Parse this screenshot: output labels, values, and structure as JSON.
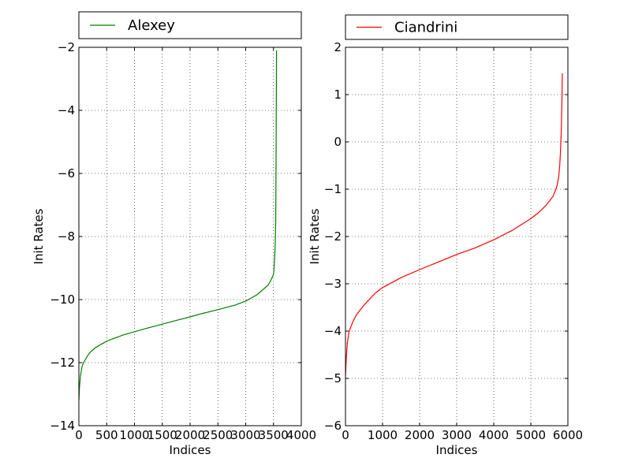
{
  "chart_data": [
    {
      "type": "line",
      "xlabel": "Indices",
      "ylabel": "Init Rates",
      "xlim": [
        0,
        4000
      ],
      "ylim": [
        -14,
        -2
      ],
      "xticks": [
        0,
        500,
        1000,
        1500,
        2000,
        2500,
        3000,
        3500,
        4000
      ],
      "xtick_labels": [
        "0",
        "500",
        "1000",
        "1500",
        "2000",
        "2500",
        "3000",
        "3500",
        "4000"
      ],
      "yticks": [
        -14,
        -12,
        -10,
        -8,
        -6,
        -4,
        -2
      ],
      "ytick_labels": [
        "−14",
        "−12",
        "−10",
        "−8",
        "−6",
        "−4",
        "−2"
      ],
      "grid": true,
      "legend_placement": "top, above plot",
      "series": [
        {
          "name": "Alexey",
          "color": "#008000",
          "x": [
            0,
            10,
            30,
            60,
            100,
            150,
            200,
            300,
            400,
            500,
            600,
            800,
            1000,
            1200,
            1500,
            1800,
            2000,
            2200,
            2500,
            2800,
            3000,
            3200,
            3300,
            3400,
            3450,
            3500,
            3510,
            3520,
            3530,
            3540,
            3545,
            3550,
            3555
          ],
          "y": [
            -13.2,
            -12.8,
            -12.4,
            -12.1,
            -11.95,
            -11.8,
            -11.68,
            -11.52,
            -11.42,
            -11.32,
            -11.25,
            -11.12,
            -11.02,
            -10.92,
            -10.78,
            -10.64,
            -10.55,
            -10.45,
            -10.32,
            -10.18,
            -10.05,
            -9.85,
            -9.7,
            -9.55,
            -9.4,
            -9.2,
            -9.0,
            -8.7,
            -8.3,
            -7.5,
            -6.0,
            -4.0,
            -2.1
          ]
        }
      ]
    },
    {
      "type": "line",
      "xlabel": "Indices",
      "ylabel": "Init Rates",
      "xlim": [
        0,
        6000
      ],
      "ylim": [
        -6,
        2
      ],
      "xticks": [
        0,
        1000,
        2000,
        3000,
        4000,
        5000,
        6000
      ],
      "xtick_labels": [
        "0",
        "1000",
        "2000",
        "3000",
        "4000",
        "5000",
        "6000"
      ],
      "yticks": [
        -6,
        -5,
        -4,
        -3,
        -2,
        -1,
        0,
        1,
        2
      ],
      "ytick_labels": [
        "−6",
        "−5",
        "−4",
        "−3",
        "−2",
        "−1",
        "0",
        "1",
        "2"
      ],
      "grid": true,
      "legend_placement": "top, above plot",
      "series": [
        {
          "name": "Ciandrini",
          "color": "#ff0000",
          "x": [
            0,
            20,
            50,
            100,
            200,
            300,
            500,
            800,
            1000,
            1500,
            2000,
            2500,
            3000,
            3500,
            4000,
            4500,
            5000,
            5200,
            5400,
            5600,
            5700,
            5750,
            5780,
            5800,
            5820,
            5840,
            5850
          ],
          "y": [
            -4.95,
            -4.6,
            -4.25,
            -4.0,
            -3.8,
            -3.65,
            -3.45,
            -3.2,
            -3.08,
            -2.87,
            -2.7,
            -2.54,
            -2.38,
            -2.24,
            -2.07,
            -1.87,
            -1.62,
            -1.5,
            -1.35,
            -1.15,
            -0.95,
            -0.75,
            -0.5,
            -0.2,
            0.2,
            0.9,
            1.45
          ]
        }
      ]
    }
  ]
}
